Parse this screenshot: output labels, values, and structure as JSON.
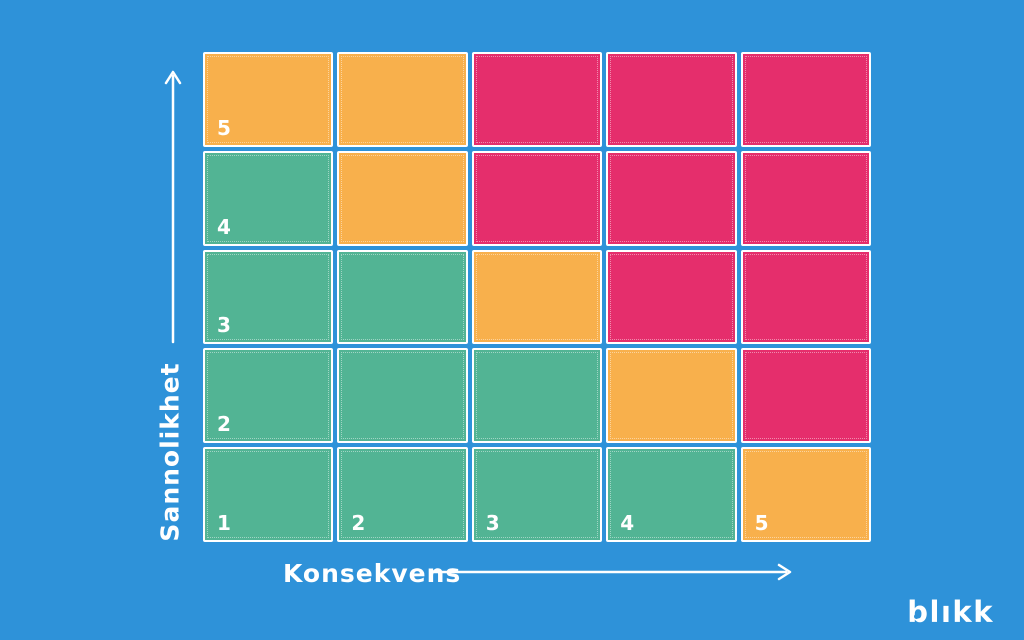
{
  "colors": {
    "background": "#2E92D9",
    "green": "#52B494",
    "orange": "#F8B04C",
    "pink": "#E52E6C",
    "cell_border": "#FFFFFF",
    "text": "#FFFFFF"
  },
  "y_axis": {
    "label": "Sannolikhet"
  },
  "x_axis": {
    "label": "Konsekvens"
  },
  "logo": {
    "text": "blıkk"
  },
  "chart_data": {
    "type": "heatmap",
    "title": "",
    "x_label": "Konsekvens",
    "y_label": "Sannolikhet",
    "x_ticks": [
      "1",
      "2",
      "3",
      "4",
      "5"
    ],
    "y_ticks": [
      "1",
      "2",
      "3",
      "4",
      "5"
    ],
    "x_range": [
      1,
      5
    ],
    "y_range": [
      1,
      5
    ],
    "grid_rows_top_to_bottom": [
      {
        "probability": 5,
        "cells": [
          "orange",
          "orange",
          "pink",
          "pink",
          "pink"
        ]
      },
      {
        "probability": 4,
        "cells": [
          "green",
          "orange",
          "pink",
          "pink",
          "pink"
        ]
      },
      {
        "probability": 3,
        "cells": [
          "green",
          "green",
          "orange",
          "pink",
          "pink"
        ]
      },
      {
        "probability": 2,
        "cells": [
          "green",
          "green",
          "green",
          "orange",
          "pink"
        ]
      },
      {
        "probability": 1,
        "cells": [
          "green",
          "green",
          "green",
          "green",
          "orange"
        ]
      }
    ],
    "legend_position": "none",
    "gridlines": false
  }
}
